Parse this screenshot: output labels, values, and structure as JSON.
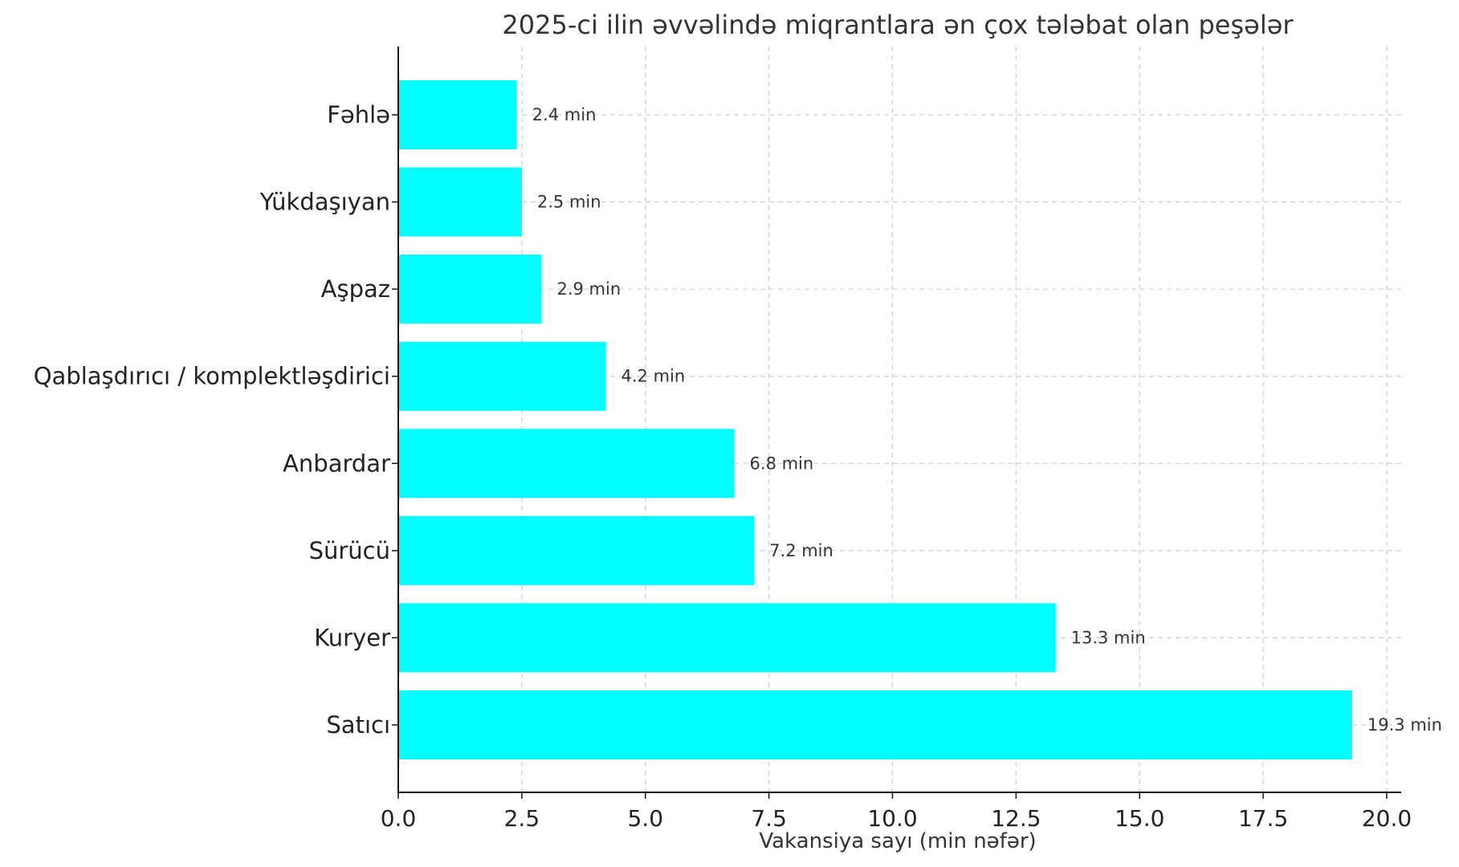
{
  "chart_data": {
    "type": "bar",
    "orientation": "horizontal",
    "title": "2025-ci ilin əvvəlində miqrantlara ən çox tələbat olan peşələr",
    "xlabel": "Vakansiya sayı (min nəfər)",
    "ylabel": "",
    "categories": [
      "Fəhlə",
      "Yükdaşıyan",
      "Aşpaz",
      "Qablaşdırıcı / komplektləşdirici",
      "Anbardar",
      "Sürücü",
      "Kuryer",
      "Satıcı"
    ],
    "values": [
      2.4,
      2.5,
      2.9,
      4.2,
      6.8,
      7.2,
      13.3,
      19.3
    ],
    "value_labels": [
      "2.4 min",
      "2.5 min",
      "2.9 min",
      "4.2 min",
      "6.8 min",
      "7.2 min",
      "13.3 min",
      "19.3 min"
    ],
    "xlim": [
      0,
      20.0
    ],
    "x_ticks": [
      "0.0",
      "2.5",
      "5.0",
      "7.5",
      "10.0",
      "12.5",
      "15.0",
      "17.5",
      "20.0"
    ],
    "grid": true,
    "bar_color": "#00ffff"
  }
}
